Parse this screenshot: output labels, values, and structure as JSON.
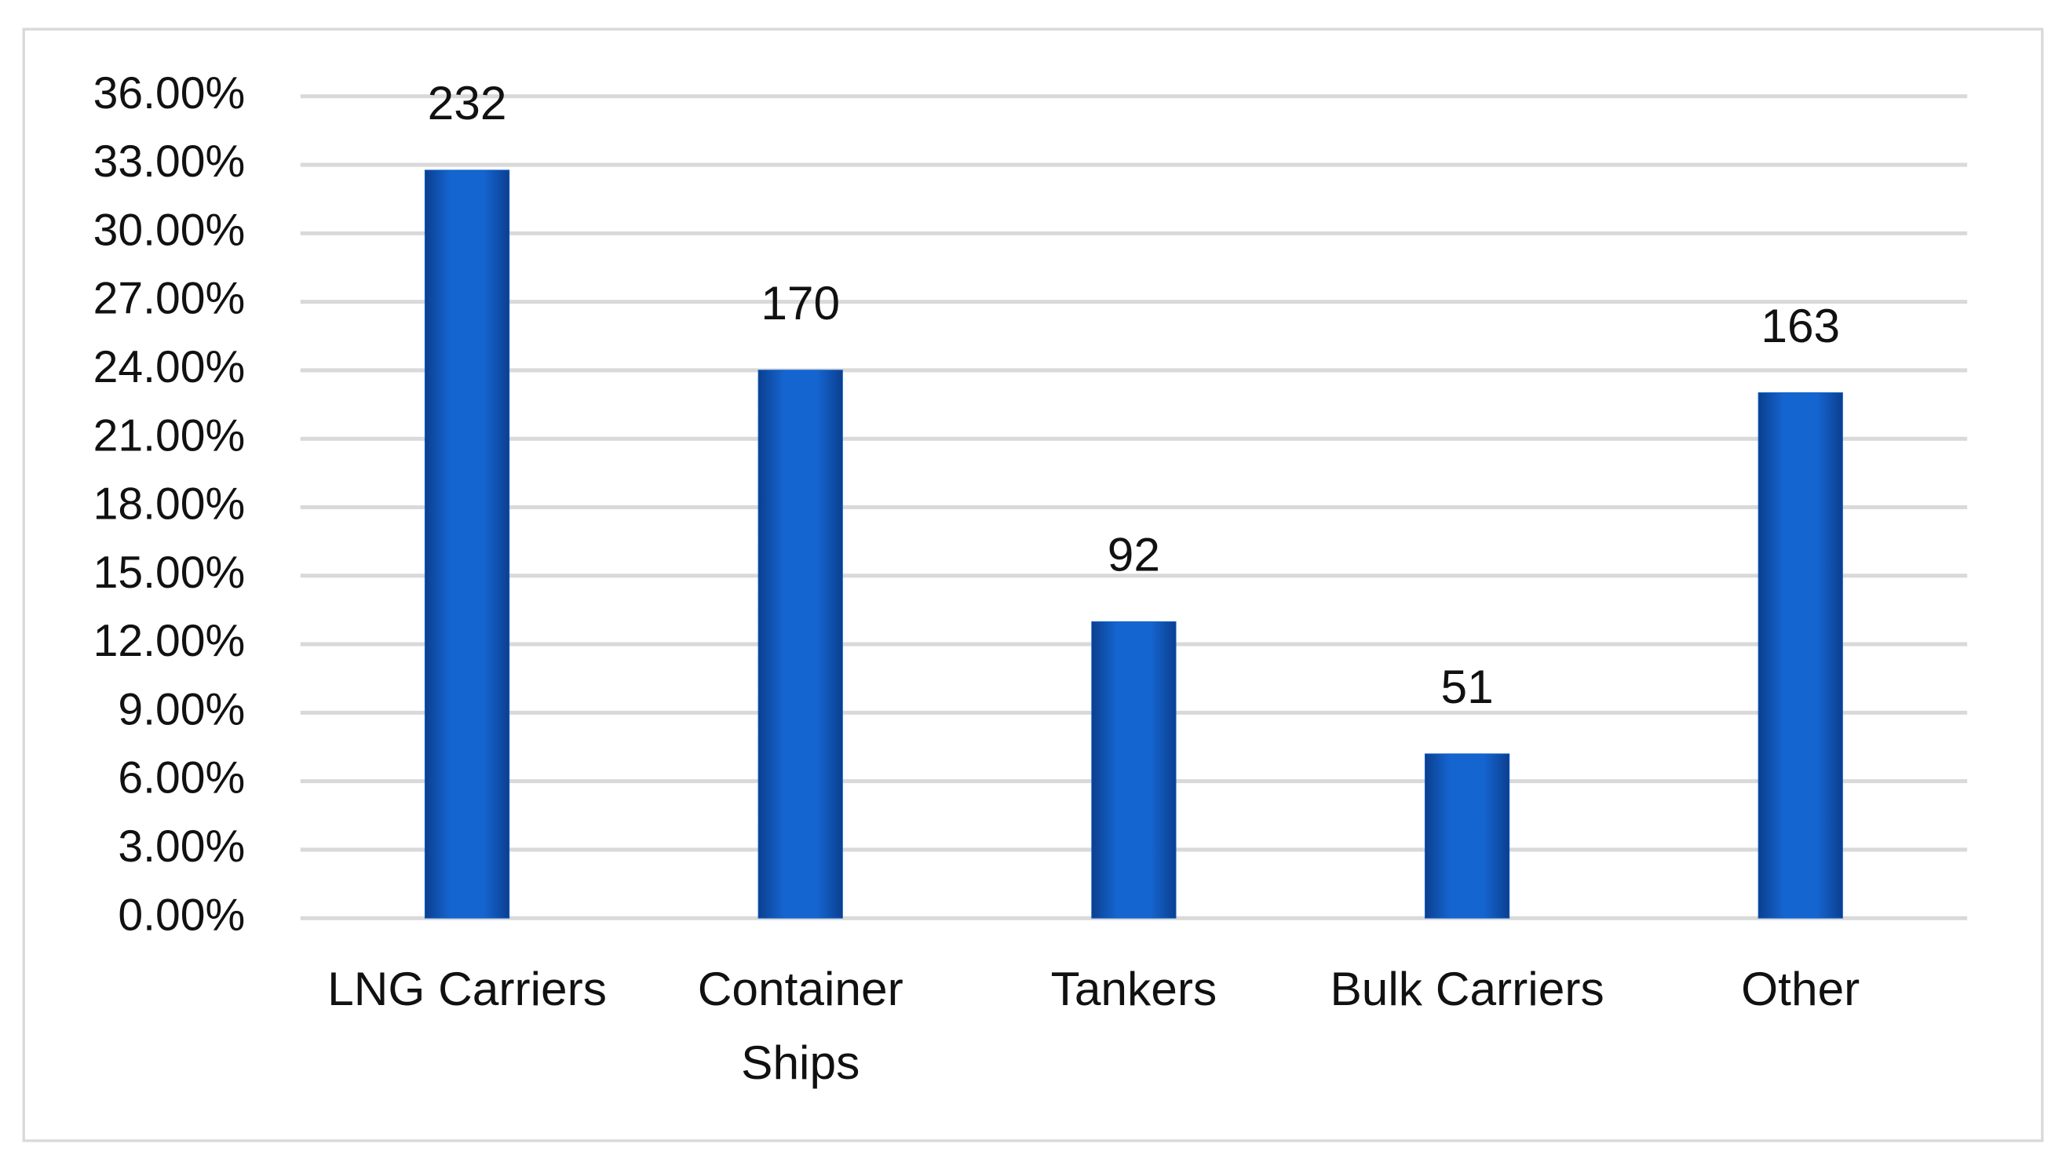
{
  "chart_data": {
    "type": "bar",
    "categories": [
      "LNG Carriers",
      "Container Ships",
      "Tankers",
      "Bulk Carriers",
      "Other"
    ],
    "values": [
      32.77,
      24.01,
      12.99,
      7.2,
      23.02
    ],
    "counts": [
      232,
      170,
      92,
      51,
      163
    ],
    "color": "#1565d0",
    "ylim": [
      0,
      36
    ],
    "yticks": [
      {
        "value": 0,
        "label": "0.00%"
      },
      {
        "value": 3,
        "label": "3.00%"
      },
      {
        "value": 6,
        "label": "6.00%"
      },
      {
        "value": 9,
        "label": "9.00%"
      },
      {
        "value": 12,
        "label": "12.00%"
      },
      {
        "value": 15,
        "label": "15.00%"
      },
      {
        "value": 18,
        "label": "18.00%"
      },
      {
        "value": 21,
        "label": "21.00%"
      },
      {
        "value": 24,
        "label": "24.00%"
      },
      {
        "value": 27,
        "label": "27.00%"
      },
      {
        "value": 30,
        "label": "30.00%"
      },
      {
        "value": 33,
        "label": "33.00%"
      },
      {
        "value": 36,
        "label": "36.00%"
      }
    ],
    "grid": true
  }
}
